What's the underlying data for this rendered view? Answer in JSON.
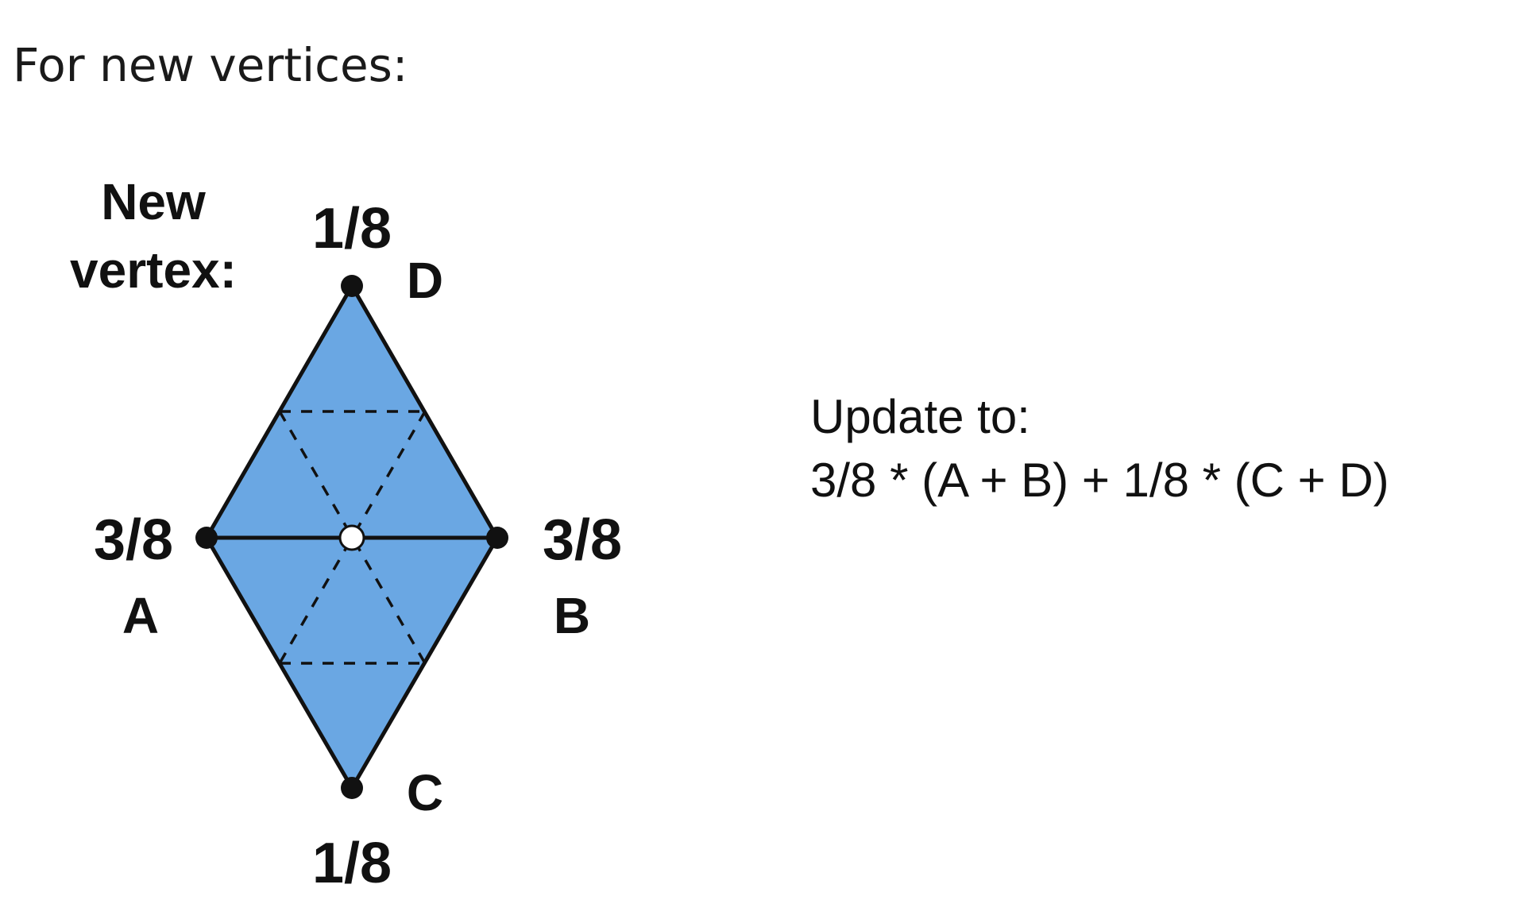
{
  "heading": "For new vertices:",
  "diagram": {
    "new_vertex_label_line1": "New",
    "new_vertex_label_line2": "vertex:",
    "vertices": {
      "D": {
        "label": "D",
        "weight": "1/8"
      },
      "A": {
        "label": "A",
        "weight": "3/8"
      },
      "B": {
        "label": "B",
        "weight": "3/8"
      },
      "C": {
        "label": "C",
        "weight": "1/8"
      }
    },
    "colors": {
      "fill": "#6aa7e3",
      "stroke": "#111111",
      "new_vertex": "#ffffff"
    }
  },
  "rule": {
    "line1": "Update to:",
    "line2": "3/8 * (A + B) + 1/8 * (C + D)"
  }
}
